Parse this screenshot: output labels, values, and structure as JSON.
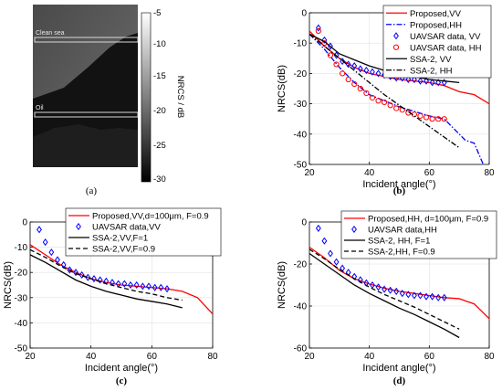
{
  "panel_a": {
    "labels": {
      "clean_sea": "Clean sea",
      "oil": "Oil"
    },
    "colorbar": {
      "label": "NRCS / dB",
      "ticks": [
        "-5",
        "-10",
        "-15",
        "-20",
        "-25",
        "-30"
      ]
    },
    "caption": "(a)"
  },
  "chart_data": [
    {
      "type": "line",
      "panel": "b",
      "caption": "(b)",
      "xlabel": "Incident angle(°)",
      "ylabel": "NRCS(dB)",
      "xlim": [
        20,
        80
      ],
      "ylim": [
        -50,
        0
      ],
      "xticks": [
        "20",
        "40",
        "60",
        "80"
      ],
      "yticks": [
        "0",
        "-10",
        "-20",
        "-30",
        "-40",
        "-50"
      ],
      "grid": true,
      "legend": "top-right",
      "series": [
        {
          "name": "Proposed,VV",
          "color": "#ff0000",
          "style": "solid",
          "x": [
            20,
            25,
            30,
            35,
            40,
            45,
            50,
            55,
            60,
            65,
            70,
            75,
            80
          ],
          "y": [
            -6,
            -11,
            -15,
            -18,
            -20,
            -21,
            -22,
            -22.5,
            -23,
            -24,
            -26,
            -27,
            -30
          ]
        },
        {
          "name": "Proposed,HH",
          "color": "#0000ff",
          "style": "dashdot",
          "x": [
            20,
            25,
            30,
            35,
            40,
            45,
            50,
            55,
            60,
            65,
            70,
            72,
            75,
            78
          ],
          "y": [
            -7,
            -12,
            -18,
            -23,
            -27,
            -29,
            -31,
            -32.5,
            -34,
            -35,
            -40,
            -42,
            -43,
            -50
          ]
        },
        {
          "name": "UAVSAR data, VV",
          "color": "#0000ff",
          "marker": "diamond",
          "x": [
            23,
            25,
            27,
            29,
            31,
            33,
            35,
            37,
            39,
            41,
            43,
            45,
            47,
            49,
            51,
            53,
            55,
            57,
            59,
            61,
            63,
            65
          ],
          "y": [
            -5,
            -9,
            -11,
            -14,
            -16,
            -17,
            -17.5,
            -18.5,
            -19,
            -19.5,
            -20,
            -20.5,
            -21,
            -21.5,
            -21.5,
            -22,
            -22,
            -22.5,
            -22.5,
            -23,
            -23,
            -23
          ]
        },
        {
          "name": "UAVSAR data, HH",
          "color": "#ff0000",
          "marker": "circle",
          "x": [
            23,
            25,
            27,
            29,
            31,
            33,
            35,
            37,
            39,
            41,
            43,
            45,
            47,
            49,
            51,
            53,
            55,
            57,
            59,
            61,
            63,
            65
          ],
          "y": [
            -6,
            -10,
            -14,
            -17,
            -20,
            -22,
            -23.5,
            -25,
            -26.5,
            -28,
            -29,
            -29.5,
            -30.5,
            -31.5,
            -32,
            -33,
            -33.5,
            -34,
            -34.5,
            -35,
            -35,
            -35
          ]
        },
        {
          "name": "SSA-2, VV",
          "color": "#000000",
          "style": "solid",
          "x": [
            20,
            25,
            30,
            35,
            40,
            45,
            50,
            55,
            60,
            65,
            70
          ],
          "y": [
            -7,
            -9.5,
            -13.5,
            -15.5,
            -17.5,
            -19,
            -20,
            -21,
            -22,
            -22.5,
            -23
          ]
        },
        {
          "name": "SSA-2, HH",
          "color": "#000000",
          "style": "dashdot",
          "x": [
            20,
            25,
            30,
            35,
            40,
            45,
            50,
            55,
            60,
            65,
            70
          ],
          "y": [
            -7,
            -11,
            -15,
            -19,
            -23,
            -27,
            -30.5,
            -34,
            -37.5,
            -41,
            -44.5
          ]
        }
      ]
    },
    {
      "type": "line",
      "panel": "c",
      "caption": "(c)",
      "xlabel": "Incident angle(°)",
      "ylabel": "NRCS(dB)",
      "xlim": [
        20,
        80
      ],
      "ylim": [
        -50,
        0
      ],
      "xticks": [
        "20",
        "40",
        "60",
        "80"
      ],
      "yticks": [
        "0",
        "-10",
        "-20",
        "-30",
        "-40",
        "-50"
      ],
      "grid": true,
      "legend": "top-right",
      "series": [
        {
          "name": "Proposed,VV,d=100μm, F=0.9",
          "color": "#ff0000",
          "style": "solid",
          "x": [
            20,
            25,
            30,
            35,
            40,
            45,
            50,
            55,
            60,
            65,
            70,
            75,
            80
          ],
          "y": [
            -9,
            -13,
            -17,
            -20,
            -22.5,
            -24,
            -25,
            -25.5,
            -26,
            -26.5,
            -27.5,
            -30,
            -36.5
          ]
        },
        {
          "name": "UAVSAR data,VV",
          "color": "#0000ff",
          "marker": "diamond",
          "x": [
            23,
            25,
            27,
            29,
            31,
            33,
            35,
            37,
            39,
            41,
            43,
            45,
            47,
            49,
            51,
            53,
            55,
            57,
            59,
            61,
            63,
            65
          ],
          "y": [
            -3,
            -8,
            -12,
            -15,
            -17,
            -19,
            -20,
            -21,
            -22,
            -22.5,
            -23,
            -23.5,
            -24,
            -24.5,
            -24.5,
            -25,
            -25,
            -25.5,
            -25.5,
            -26,
            -26,
            -26.5
          ]
        },
        {
          "name": "SSA-2,VV,F=1",
          "color": "#000000",
          "style": "solid",
          "x": [
            20,
            25,
            30,
            35,
            40,
            45,
            50,
            55,
            60,
            65,
            70
          ],
          "y": [
            -13,
            -16,
            -19.5,
            -23,
            -25.5,
            -27.5,
            -29,
            -30.5,
            -31.5,
            -32.5,
            -34
          ]
        },
        {
          "name": "SSA-2,VV,F=0.9",
          "color": "#000000",
          "style": "dashed",
          "x": [
            20,
            25,
            30,
            35,
            40,
            45,
            50,
            55,
            60,
            65,
            70
          ],
          "y": [
            -11,
            -14,
            -17.5,
            -20.5,
            -22.5,
            -24.5,
            -26,
            -27.5,
            -28.5,
            -30,
            -31
          ]
        }
      ]
    },
    {
      "type": "line",
      "panel": "d",
      "caption": "(d)",
      "xlabel": "Incident angle(°)",
      "ylabel": "NRCS(dB)",
      "xlim": [
        20,
        80
      ],
      "ylim": [
        -60,
        0
      ],
      "xticks": [
        "20",
        "40",
        "60",
        "80"
      ],
      "yticks": [
        "0",
        "-20",
        "-40",
        "-60"
      ],
      "grid": true,
      "legend": "top-right",
      "series": [
        {
          "name": "Proposed,HH, d=100μm, F=0.9",
          "color": "#ff0000",
          "style": "solid",
          "x": [
            20,
            25,
            30,
            35,
            40,
            45,
            50,
            55,
            60,
            65,
            70,
            75,
            80
          ],
          "y": [
            -12,
            -17,
            -23,
            -27,
            -29.5,
            -31.5,
            -33,
            -34,
            -35,
            -36,
            -36.5,
            -39,
            -46
          ]
        },
        {
          "name": "UAVSAR data,HH",
          "color": "#0000ff",
          "marker": "diamond",
          "x": [
            23,
            25,
            27,
            29,
            31,
            33,
            35,
            37,
            39,
            41,
            43,
            45,
            47,
            49,
            51,
            53,
            55,
            57,
            59,
            61,
            63,
            65
          ],
          "y": [
            -3,
            -9,
            -15,
            -19,
            -22,
            -24,
            -26,
            -27.5,
            -29,
            -30,
            -31,
            -32,
            -32.5,
            -33,
            -34,
            -34.5,
            -35,
            -35,
            -35.5,
            -35.5,
            -36,
            -36
          ]
        },
        {
          "name": "SSA-2, HH, F=1",
          "color": "#000000",
          "style": "solid",
          "x": [
            20,
            25,
            30,
            35,
            40,
            45,
            50,
            55,
            60,
            65,
            70
          ],
          "y": [
            -15,
            -20,
            -25,
            -30,
            -34,
            -37.5,
            -41,
            -44,
            -47.5,
            -51,
            -55
          ]
        },
        {
          "name": "SSA-2,HH, F=0.9",
          "color": "#000000",
          "style": "dashed",
          "x": [
            20,
            25,
            30,
            35,
            40,
            45,
            50,
            55,
            60,
            65,
            70
          ],
          "y": [
            -13,
            -17.5,
            -22.5,
            -27,
            -31,
            -34.5,
            -37.5,
            -40.5,
            -44,
            -47.5,
            -51
          ]
        }
      ]
    }
  ]
}
